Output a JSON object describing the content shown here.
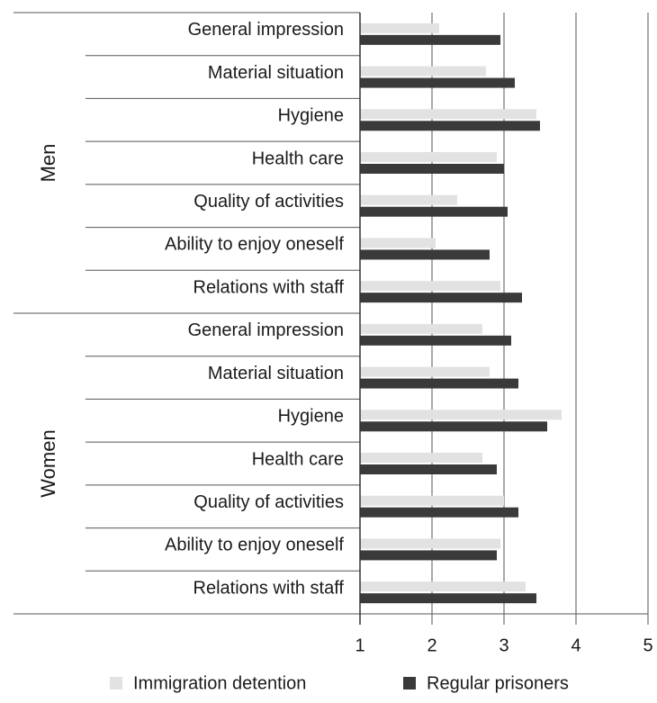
{
  "chart_data": {
    "type": "bar",
    "orientation": "horizontal",
    "group_labels": [
      "Men",
      "Women"
    ],
    "categories": [
      "General impression",
      "Material situation",
      "Hygiene",
      "Health care",
      "Quality of activities",
      "Ability to enjoy oneself",
      "Relations with staff",
      "General impression",
      "Material situation",
      "Hygiene",
      "Health care",
      "Quality of activities",
      "Ability to enjoy oneself",
      "Relations with staff"
    ],
    "series": [
      {
        "name": "Immigration detention",
        "color": "#e2e2e2",
        "values": [
          2.1,
          2.75,
          3.45,
          2.9,
          2.35,
          2.05,
          2.95,
          2.7,
          2.8,
          3.8,
          2.7,
          3.0,
          2.95,
          3.3
        ]
      },
      {
        "name": "Regular prisoners",
        "color": "#3a3a3a",
        "values": [
          2.95,
          3.15,
          3.5,
          3.0,
          3.05,
          2.8,
          3.25,
          3.1,
          3.2,
          3.6,
          2.9,
          3.2,
          2.9,
          3.45
        ]
      }
    ],
    "xlim": [
      1,
      5
    ],
    "xticks": [
      1,
      2,
      3,
      4,
      5
    ],
    "grid": true
  }
}
